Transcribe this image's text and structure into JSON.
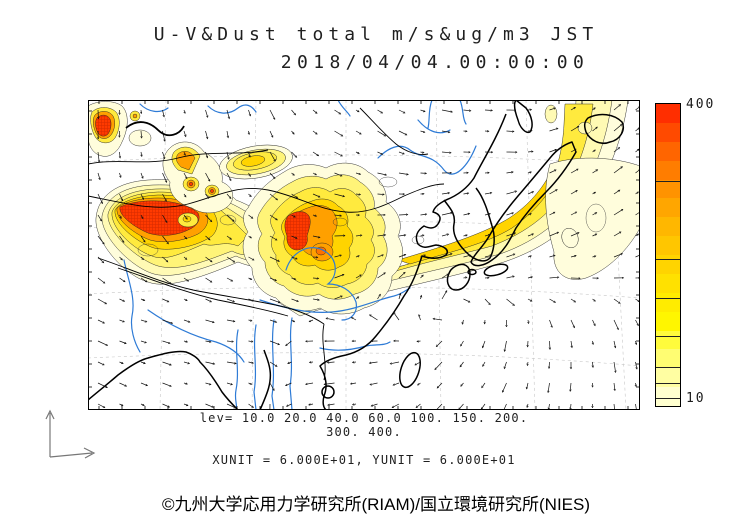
{
  "title": {
    "line1": "U-V&Dust total m/s&ug/m3 JST",
    "line2": "2018/04/04.00:00:00"
  },
  "chart_data": {
    "type": "heatmap",
    "subtype": "filled-contour map with wind vector field",
    "title": "U-V&Dust total m/s&ug/m3 JST",
    "valid_time": "2018/04/04.00:00:00",
    "shaded_variable": "Dust total (ug/m3)",
    "vector_variable": "U-V wind (m/s)",
    "contour_levels": [
      10.0,
      20.0,
      40.0,
      60.0,
      100,
      150,
      200,
      300,
      400
    ],
    "levels_caption_line1": "lev= 10.0 20.0 40.0 60.0 100. 150. 200.",
    "levels_caption_line2": "300. 400.",
    "units_caption": "XUNIT = 6.000E+01, YUNIT = 6.000E+01",
    "colorbar": {
      "orientation": "vertical",
      "position": "right",
      "max_label": "400",
      "min_label": "10",
      "value_min": 10,
      "value_max": 400,
      "colors_top_to_bottom": [
        "#FF2E00",
        "#FF4A00",
        "#FF6500",
        "#FF7D00",
        "#FF9300",
        "#FFA600",
        "#FFB700",
        "#FFC600",
        "#FFD400",
        "#FFE100",
        "#FFEC00",
        "#FFF600",
        "#FFFB3C",
        "#FFFD72",
        "#FFFEA2",
        "#FFFFCF"
      ]
    },
    "colors": {
      "contour_pale": "#FFFDDC",
      "contour_pale2": "#FFFAB4",
      "contour_yellow_light": "#FFF478",
      "contour_yellow": "#FFEA3E",
      "contour_amber": "#FFD400",
      "contour_orange": "#FFA000",
      "contour_deep_orange": "#FF7200",
      "contour_red": "#FF3A00",
      "river_blue": "#2E7BD6",
      "coastline_black": "#000000",
      "graticule_gray": "#999999"
    },
    "grid_on": true,
    "legend_position": "right"
  },
  "footer": {
    "copyright": "©九州大学応用力学研究所(RIAM)/国立環境研究所(NIES)"
  }
}
